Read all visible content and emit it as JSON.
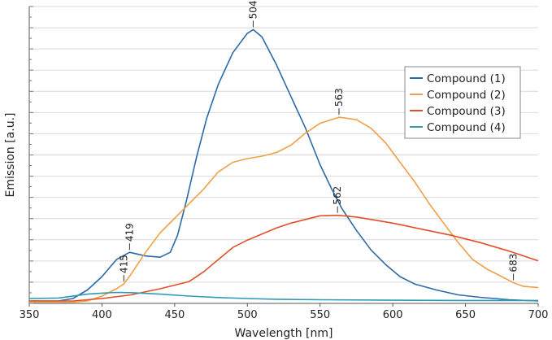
{
  "chart_data": {
    "type": "line",
    "title": "",
    "xlabel": "Wavelength [nm]",
    "ylabel": "Emission [a.u.]",
    "xlim": [
      350,
      700
    ],
    "xticks": [
      350,
      400,
      450,
      500,
      550,
      600,
      650,
      700
    ],
    "grid": true,
    "legend_position": "top-right",
    "series": [
      {
        "name": "Compound (1)",
        "color": "#2b6aa8",
        "points": [
          [
            350,
            0.1
          ],
          [
            370,
            0.1
          ],
          [
            380,
            0.2
          ],
          [
            390,
            0.55
          ],
          [
            400,
            1.1
          ],
          [
            410,
            1.8
          ],
          [
            419,
            2.1
          ],
          [
            430,
            1.95
          ],
          [
            440,
            1.9
          ],
          [
            447,
            2.1
          ],
          [
            452,
            2.8
          ],
          [
            458,
            4.2
          ],
          [
            465,
            6.0
          ],
          [
            472,
            7.6
          ],
          [
            480,
            9.0
          ],
          [
            490,
            10.3
          ],
          [
            500,
            11.1
          ],
          [
            504,
            11.25
          ],
          [
            510,
            10.95
          ],
          [
            520,
            9.8
          ],
          [
            530,
            8.5
          ],
          [
            540,
            7.2
          ],
          [
            550,
            5.7
          ],
          [
            558,
            4.7
          ],
          [
            565,
            3.9
          ],
          [
            575,
            3.0
          ],
          [
            585,
            2.2
          ],
          [
            595,
            1.6
          ],
          [
            605,
            1.1
          ],
          [
            615,
            0.8
          ],
          [
            630,
            0.55
          ],
          [
            645,
            0.35
          ],
          [
            660,
            0.25
          ],
          [
            680,
            0.15
          ],
          [
            700,
            0.1
          ]
        ]
      },
      {
        "name": "Compound (2)",
        "color": "#f0a046",
        "points": [
          [
            350,
            0.05
          ],
          [
            380,
            0.05
          ],
          [
            390,
            0.1
          ],
          [
            400,
            0.3
          ],
          [
            410,
            0.6
          ],
          [
            415,
            0.8
          ],
          [
            420,
            1.2
          ],
          [
            430,
            2.1
          ],
          [
            440,
            2.9
          ],
          [
            450,
            3.5
          ],
          [
            460,
            4.1
          ],
          [
            470,
            4.7
          ],
          [
            480,
            5.4
          ],
          [
            490,
            5.8
          ],
          [
            500,
            5.95
          ],
          [
            510,
            6.05
          ],
          [
            520,
            6.2
          ],
          [
            530,
            6.5
          ],
          [
            540,
            7.0
          ],
          [
            550,
            7.4
          ],
          [
            563,
            7.65
          ],
          [
            575,
            7.55
          ],
          [
            585,
            7.2
          ],
          [
            595,
            6.6
          ],
          [
            605,
            5.8
          ],
          [
            615,
            5.0
          ],
          [
            625,
            4.1
          ],
          [
            635,
            3.3
          ],
          [
            645,
            2.5
          ],
          [
            655,
            1.8
          ],
          [
            665,
            1.4
          ],
          [
            675,
            1.1
          ],
          [
            683,
            0.85
          ],
          [
            690,
            0.7
          ],
          [
            700,
            0.65
          ]
        ]
      },
      {
        "name": "Compound (3)",
        "color": "#e2502a",
        "points": [
          [
            350,
            0.1
          ],
          [
            380,
            0.1
          ],
          [
            400,
            0.2
          ],
          [
            420,
            0.35
          ],
          [
            440,
            0.6
          ],
          [
            460,
            0.9
          ],
          [
            470,
            1.3
          ],
          [
            480,
            1.8
          ],
          [
            490,
            2.3
          ],
          [
            500,
            2.6
          ],
          [
            510,
            2.85
          ],
          [
            520,
            3.1
          ],
          [
            530,
            3.3
          ],
          [
            540,
            3.45
          ],
          [
            550,
            3.6
          ],
          [
            562,
            3.62
          ],
          [
            575,
            3.55
          ],
          [
            590,
            3.4
          ],
          [
            600,
            3.3
          ],
          [
            620,
            3.05
          ],
          [
            640,
            2.8
          ],
          [
            660,
            2.5
          ],
          [
            680,
            2.15
          ],
          [
            700,
            1.75
          ]
        ]
      },
      {
        "name": "Compound (4)",
        "color": "#2f9ab5",
        "points": [
          [
            350,
            0.2
          ],
          [
            370,
            0.22
          ],
          [
            390,
            0.38
          ],
          [
            400,
            0.42
          ],
          [
            410,
            0.45
          ],
          [
            420,
            0.44
          ],
          [
            440,
            0.38
          ],
          [
            460,
            0.3
          ],
          [
            480,
            0.24
          ],
          [
            500,
            0.2
          ],
          [
            520,
            0.17
          ],
          [
            550,
            0.15
          ],
          [
            600,
            0.13
          ],
          [
            650,
            0.12
          ],
          [
            700,
            0.12
          ]
        ]
      }
    ],
    "annotations": [
      {
        "text": "504",
        "x": 504,
        "y": 11.25
      },
      {
        "text": "419",
        "x": 419,
        "y": 2.1
      },
      {
        "text": "415",
        "x": 415,
        "y": 0.8
      },
      {
        "text": "563",
        "x": 563,
        "y": 7.65
      },
      {
        "text": "562",
        "x": 562,
        "y": 3.62
      },
      {
        "text": "683",
        "x": 683,
        "y": 0.85
      }
    ]
  }
}
